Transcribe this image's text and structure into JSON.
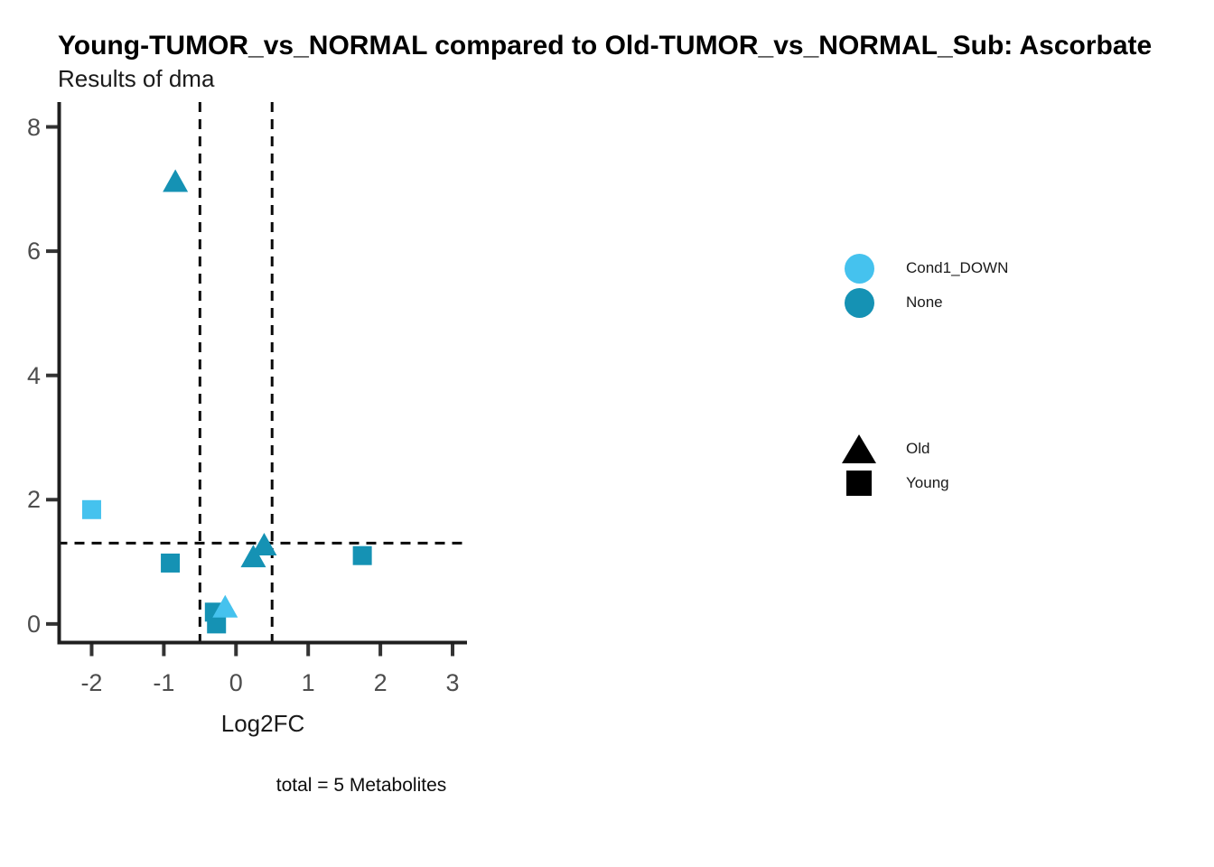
{
  "header": {
    "title": "Young-TUMOR_vs_NORMAL compared to Old-TUMOR_vs_NORMAL_Sub: Ascorbate",
    "subtitle": "Results of dma"
  },
  "caption": {
    "text": "total = 5 Metabolites"
  },
  "colors": {
    "cond1_down": "#45C2EE",
    "none": "#1592B4",
    "legend_shape": "#000000",
    "axis_line": "#1f1f1f",
    "tick_mark": "#333333",
    "tick_text": "#4d4d4d",
    "threshold_line": "#0a0a0a"
  },
  "legends": {
    "color": {
      "items": [
        {
          "label": "Cond1_DOWN",
          "color_key": "cond1_down"
        },
        {
          "label": "None",
          "color_key": "none"
        }
      ]
    },
    "shape": {
      "items": [
        {
          "label": "Old",
          "shape": "triangle"
        },
        {
          "label": "Young",
          "shape": "square"
        }
      ]
    }
  },
  "chart_data": {
    "type": "scatter",
    "title": "Young-TUMOR_vs_NORMAL compared to Old-TUMOR_vs_NORMAL_Sub: Ascorbate",
    "subtitle": "Results of dma",
    "xlabel": "Log2FC",
    "ylabel": "",
    "xlim": [
      -2.45,
      3.2
    ],
    "ylim": [
      -0.3,
      8.4
    ],
    "x_ticks": [
      -2,
      -1,
      0,
      1,
      2,
      3
    ],
    "y_ticks": [
      0,
      2,
      4,
      6,
      8
    ],
    "grid": false,
    "legend_position": "right",
    "thresholds": {
      "vlines": [
        -0.5,
        0.5
      ],
      "hline": 1.301
    },
    "caption": "total = 5 Metabolites",
    "series": [
      {
        "name": "None",
        "color_key": "none",
        "points": [
          {
            "x": -0.84,
            "y": 7.12,
            "shape": "triangle",
            "condition": "Old"
          },
          {
            "x": -0.91,
            "y": 0.98,
            "shape": "square",
            "condition": "Young"
          },
          {
            "x": 0.24,
            "y": 1.08,
            "shape": "triangle",
            "condition": "Old"
          },
          {
            "x": 0.39,
            "y": 1.27,
            "shape": "triangle",
            "condition": "Old"
          },
          {
            "x": 1.75,
            "y": 1.1,
            "shape": "square",
            "condition": "Young"
          },
          {
            "x": -0.3,
            "y": 0.19,
            "shape": "square",
            "condition": "Young"
          },
          {
            "x": -0.27,
            "y": 0.0,
            "shape": "square",
            "condition": "Young"
          }
        ]
      },
      {
        "name": "Cond1_DOWN",
        "color_key": "cond1_down",
        "points": [
          {
            "x": -2.0,
            "y": 1.84,
            "shape": "square",
            "condition": "Young"
          },
          {
            "x": -0.15,
            "y": 0.27,
            "shape": "triangle",
            "condition": "Old"
          }
        ]
      }
    ]
  }
}
